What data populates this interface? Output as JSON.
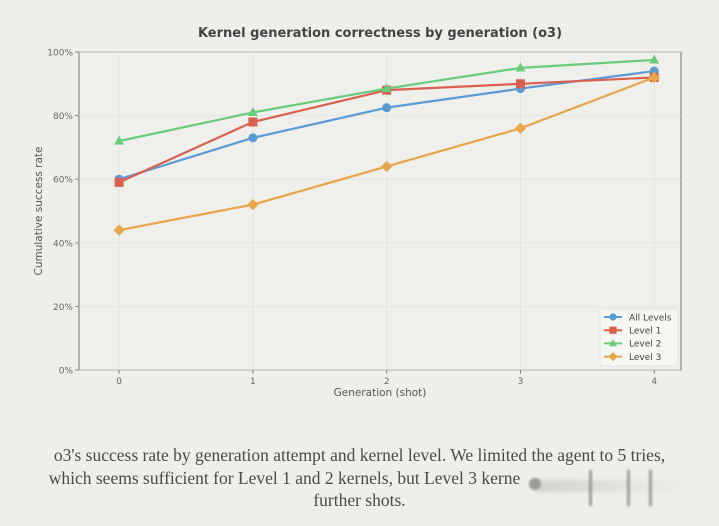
{
  "chart_data": {
    "type": "line",
    "title": "Kernel generation correctness by generation (o3)",
    "xlabel": "Generation (shot)",
    "ylabel": "Cumulative success rate",
    "x": [
      0,
      1,
      2,
      3,
      4
    ],
    "xticks": [
      "0",
      "1",
      "2",
      "3",
      "4"
    ],
    "xlim": [
      -0.3,
      4.2
    ],
    "ylim": [
      0,
      100
    ],
    "yticks": [
      "0%",
      "20%",
      "40%",
      "60%",
      "80%",
      "100%"
    ],
    "ytick_values": [
      0,
      20,
      40,
      60,
      80,
      100
    ],
    "grid": true,
    "legend_position": "lower-right",
    "series": [
      {
        "name": "All Levels",
        "marker": "circle",
        "color": "#5b9bd5",
        "values": [
          60,
          73,
          82.5,
          88.5,
          94
        ]
      },
      {
        "name": "Level 1",
        "marker": "square",
        "color": "#d9604f",
        "values": [
          59,
          78,
          88,
          90,
          92
        ]
      },
      {
        "name": "Level 2",
        "marker": "triangle",
        "color": "#6acb7c",
        "values": [
          72,
          81,
          88.5,
          95,
          97.5
        ]
      },
      {
        "name": "Level 3",
        "marker": "diamond",
        "color": "#e8a64a",
        "values": [
          44,
          52,
          64,
          76,
          92
        ]
      }
    ]
  },
  "caption": {
    "line1": "o3's success rate by generation attempt and kernel level. We limited the agent to 5 tries,",
    "line2": "which seems sufficient for Level 1 and 2 kernels, but Level 3 kerne",
    "line3": "further shots."
  }
}
